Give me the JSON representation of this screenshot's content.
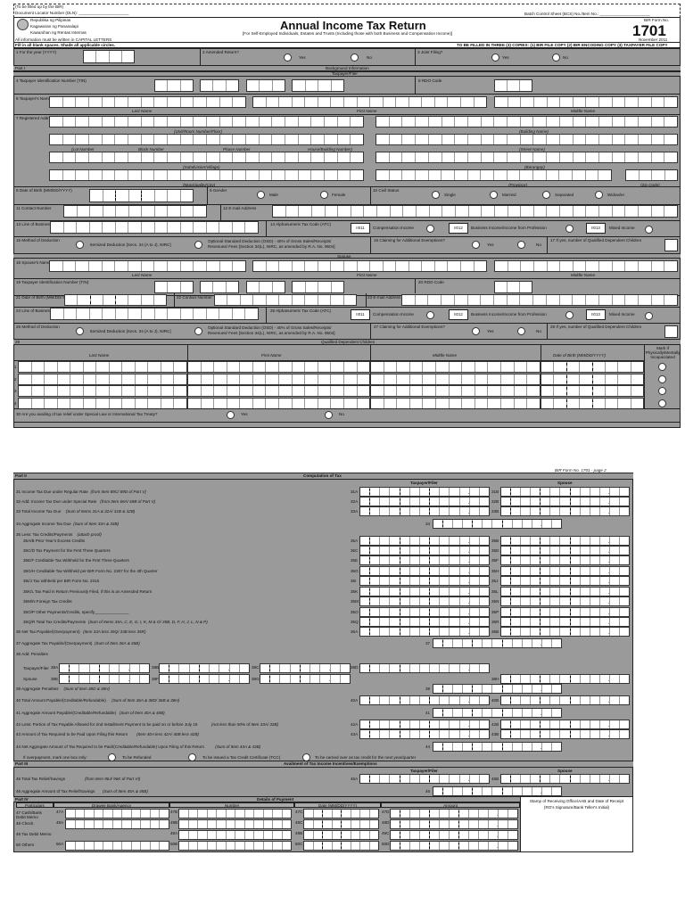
{
  "header": {
    "bir_use": "(To be filled up by the BIR)",
    "dln": "Document Locator Number (DLN): ______________________",
    "bcs": "Batch Control Sheet (BCS) No./Item No.: ______________________",
    "agency1": "Republika ng Pilipinas",
    "agency2": "Kagawaran ng Pananalapi",
    "agency3": "Kawanihan ng Rentas Internas",
    "capital": "All information must be written in CAPITAL LETTERS",
    "title": "Annual Income Tax Return",
    "subtitle": "[For Self-Employed Individuals, Estates and Trusts (Including those with both Business and Compensation Income)]",
    "form_label": "BIR Form No.",
    "form_no": "1701",
    "form_date": "November 2011",
    "fill": "Fill in all blank spaces. Shade all applicable circles.",
    "copies": "TO BE FILLED IN THREE (3) COPIES: (1) BIR FILE COPY (2) BIR ENCODING COPY (3) TAXPAYER FILE COPY"
  },
  "p1": {
    "i1": "1  For the year (YYYY)",
    "i2": "2  Amended Return?",
    "i3": "3  Joint Filing?",
    "yes": "Yes",
    "no": "No",
    "part1": "Part I",
    "part1_title": "Background Information",
    "filer": "Taxpayer/Filer",
    "spouse": "Spouse",
    "i4": "4  Taxpayer Identification Number (TIN)",
    "i5": "5  RDO Code",
    "i6": "6  Taxpayer's Name",
    "last": "Last Name",
    "first": "First Name",
    "middle": "Middle Name",
    "i7": "7  Registered Address",
    "unit": "(Unit/Room Number/Floor)",
    "bldg": "(Building Name)",
    "lot": "(Lot Number",
    "block": "Block Number",
    "phase": "Phase Number",
    "house": "House/Building Number)",
    "street": "(Street Name)",
    "subd": "(Subdivision/Village)",
    "brgy": "(Barangay)",
    "city": "(Municipality/City)",
    "prov": "(Province)",
    "zip": "(Zip Code)",
    "i8": "8  Date of Birth (MM/DD/YYYY)",
    "i9": "9  Gender",
    "male": "Male",
    "female": "Female",
    "i10": "10  Civil Status",
    "single": "Single",
    "married": "Married",
    "separated": "Separated",
    "widow": "Widow/er",
    "i11": "11  Contact Number",
    "i12": "12  E-mail Address",
    "i13": "13  Line of Business",
    "i14": "14  Alphanumeric Tax Code (ATC)",
    "atc1": "II011",
    "atc1_l": "Compensation Income",
    "atc2": "II012",
    "atc2_l": "Business Income/Income from Profession",
    "atc3": "II013",
    "atc3_l": "Mixed Income",
    "i15": "15  Method of Deduction",
    "itemized": "Itemized Deduction [Secs. 34 (A to J), NIRC]",
    "osd1": "Optional Standard Deduction (OSD) - 40% of Gross Sales/Receipts/",
    "osd2": "Revenues/ Fees [Section 34(L), NIRC, as amended by R.A. No. 9504]",
    "i16": "16  Claiming for Additional Exemptions?",
    "i17": "17  If yes, number of Qualified Dependent Children",
    "i18": "18  Spouse's Name",
    "i19": "19  Taxpayer Identification Number (TIN)",
    "i20": "20  RDO Code",
    "i21": "21  Date of Birth (MM/DD/YYYY)",
    "i22": "22  Contact Number",
    "i23": "23  E-mail Address",
    "i24": "24  Line of Business",
    "i25": "25  Alphanumeric Tax Code (ATC)",
    "i26": "26  Method of Deduction",
    "i27": "27  Claiming for Additional Exemptions?",
    "i28": "28  If yes, number of Qualified Dependent Children",
    "i29": "29",
    "children": "Qualified Dependent Children",
    "dob": "Date of Birth (MM/DD/YYYY)",
    "pwd": "Mark if Physically/Mentally Incapacitated",
    "rows": [
      "1",
      "2",
      "3",
      "4"
    ],
    "i30": "30  Are you availing of tax relief under Special Law or International Tax Treaty?"
  },
  "p2": {
    "page": "BIR Form No. 1701 - page 2",
    "part2": "Part II",
    "part2_title": "Computation of Tax",
    "filer": "Taxpayer/Filer",
    "spouse": "Spouse",
    "items": [
      {
        "label": "31  Income Tax Due under Regular Rate",
        "note": "(from Item 89C/ 89D of Part V)",
        "a": "31A",
        "b": "31B"
      },
      {
        "label": "32  Add: Income Tax Due under Special Rate",
        "note": "(from Item 69A/ 69B of Part V)",
        "a": "32A",
        "b": "32B"
      },
      {
        "label": "33  Total Income Tax Due",
        "note": "(Sum of Items 31A & 32A/ 31B & 32B)",
        "a": "33A",
        "b": "33B"
      },
      {
        "label": "34  Aggregate Income Tax Due",
        "note": "(Sum of Item 33A & 33B)",
        "c": "34"
      },
      {
        "label": "35  Less: Tax Credits/Payments",
        "note": "(attach proof)"
      },
      {
        "label": "35A/B Prior Year's Excess Credits",
        "a": "35A",
        "b": "35B"
      },
      {
        "label": "35C/D Tax Payment for the First Three Quarters",
        "a": "35C",
        "b": "35D"
      },
      {
        "label": "35E/F Creditable Tax Withheld for the First Three Quarters",
        "a": "35E",
        "b": "35F"
      },
      {
        "label": "35G/H Creditable Tax Withheld per BIR Form No. 2307 for the 4th Quarter",
        "a": "35G",
        "b": "35H"
      },
      {
        "label": "35I/J  Tax withheld per BIR Form No. 2316",
        "a": "35I",
        "b": "35J"
      },
      {
        "label": "35K/L Tax Paid in Return Previously Filed, if this is an Amended Return",
        "a": "35K",
        "b": "35L"
      },
      {
        "label": "35M/N Foreign Tax Credits",
        "a": "35M",
        "b": "35N"
      },
      {
        "label": "35O/P Other Payments/Credits, specify_______________",
        "a": "35O",
        "b": "35P"
      },
      {
        "label": "35Q/R Total Tax Credits/Payments",
        "note": "(Sum of Items 35A, C, E, G, I, K, M & O/ 35B, D, F, H, J, L, N & P)",
        "a": "35Q",
        "b": "35R"
      },
      {
        "label": "36  Net Tax Payable/(Overpayment)",
        "note": "(Item 33A less 35Q/ 33B less 35R)",
        "a": "36A",
        "b": "36B"
      },
      {
        "label": "37  Aggregate Tax Payable/(Overpayment)",
        "note": "(Sum of Item 36A & 36B)",
        "c": "37"
      },
      {
        "label": "38  Add: Penalties"
      },
      {
        "label": "39  Aggregate Penalties",
        "note": "(Sum of Item 38D & 38H)",
        "c": "39"
      },
      {
        "label": "40  Total Amount Payable/(Creditable/Refundable)",
        "note": "(Sum of Item 36A & 38D/ 36B & 38H)",
        "a": "40A",
        "b": "40B"
      },
      {
        "label": "41  Aggregate Amount Payable/(Creditable/Refundable)",
        "note": "(Sum of Item 40A & 40B)",
        "c": "41"
      },
      {
        "label": "42  Less: Portion of Tax Payable Allowed for 2nd Installment Payment to be paid on or before July 15",
        "note": "(not less than 50% of Item 33A/ 33B)",
        "a": "42A",
        "b": "42B"
      },
      {
        "label": "43  Amount of Tax Required to be Paid Upon Filing this Return",
        "note": "(Item 40A less 42A/ 40B less 42B)",
        "a": "43A",
        "b": "43B"
      },
      {
        "label": "44  Net Aggregate Amount of Tax Required to be Paid/(Creditable/Refundable) Upon Filing of this Return",
        "note": "(Sum of Item 43A & 43B)",
        "c": "44"
      }
    ],
    "pen_filer": "Taxpayer/Filer",
    "pen_spouse": "Spouse",
    "pen": [
      "38A",
      "38B",
      "38C",
      "38D",
      "38E",
      "38F",
      "38G",
      "38H"
    ],
    "overpay": "If overpayment, mark one box only:",
    "refund": "To be Refunded",
    "tcc": "To be issued a Tax Credit Certificate (TCC)",
    "carry": "To be carried over as tax credit for the next year/quarter",
    "part3": "Part III",
    "part3_title": "Availment of Tax Income Incentives/Exemptions",
    "i45": "45  Total Tax Relief/Savings",
    "i45n": "(from Item 96J/ 96K of Part VI)",
    "c45a": "45A",
    "c45b": "45B",
    "i46": "46  Aggregate Amount of Tax Relief/Savings",
    "i46n": "(Sum of Item 45A & 45B)",
    "c46": "46",
    "part4": "Part IV",
    "part4_title": "Details of Payment",
    "cols": [
      "Particulars",
      "Drawee Bank/Agency",
      "Number",
      "Date (MM/DD/YYYY)",
      "Amount"
    ],
    "stamp1": "Stamp of Receiving Office/AAB and Date of Receipt",
    "stamp2": "(RO's Signature/Bank Teller's Initial)",
    "pay": [
      {
        "label": "47  Cash/Bank Debit Memo",
        "codes": [
          "47A",
          "47B",
          "47C",
          "47D"
        ]
      },
      {
        "label": "48  Check",
        "codes": [
          "48A",
          "48B",
          "48C",
          "48D"
        ]
      },
      {
        "label": "49  Tax Debit Memo",
        "codes": [
          "",
          "49A",
          "49B",
          "49C"
        ]
      },
      {
        "label": "50  Others",
        "codes": [
          "50A",
          "50B",
          "50C",
          "50D"
        ]
      }
    ]
  },
  "colors": {
    "form_gray": "#9a9a9a",
    "box": "#ffffff",
    "line": "#222222"
  }
}
